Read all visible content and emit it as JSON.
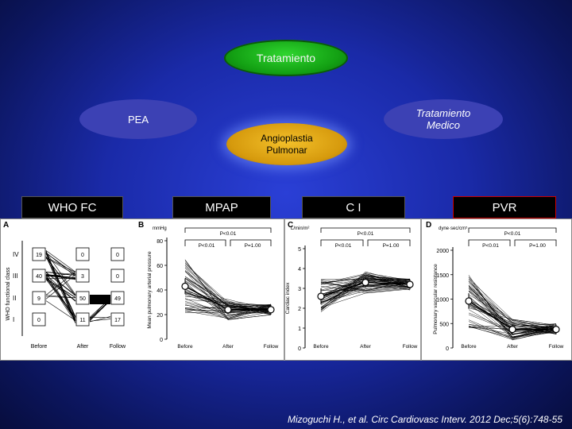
{
  "diagram": {
    "top_node": "Tratamiento",
    "left_node": "PEA",
    "right_node": "Tratamiento\nMedico",
    "center_node": "Angioplastia\nPulmonar"
  },
  "headers": {
    "who": "WHO FC",
    "mpap": "MPAP",
    "ci": "C I",
    "pvr": "PVR"
  },
  "citation": "Mizoguchi H., et al. Circ Cardiovasc Interv. 2012 Dec;5(6):748-55",
  "panels": {
    "A": {
      "letter": "A",
      "ylabel": "WHO functional class",
      "classes": [
        "IV",
        "III",
        "II",
        "I"
      ],
      "timepoints": [
        "Before",
        "After",
        "Follow"
      ],
      "counts": {
        "Before": [
          19,
          40,
          9,
          0
        ],
        "After": [
          0,
          3,
          50,
          11
        ],
        "Follow": [
          0,
          0,
          49,
          17
        ]
      }
    },
    "B": {
      "letter": "B",
      "unit": "mmHg",
      "ylabel": "Mean pulmonary arterial pressure",
      "yticks": [
        "80",
        "60",
        "40",
        "20",
        "0"
      ],
      "ylim": [
        0,
        80
      ],
      "timepoints": [
        "Before",
        "After",
        "Follow"
      ],
      "p_overall": "P<0.01",
      "p_left": "P<0.01",
      "p_right": "P=1.00",
      "means": [
        43,
        24,
        24
      ]
    },
    "C": {
      "letter": "C",
      "unit": "L/min/m²",
      "ylabel": "Cardiac index",
      "yticks": [
        "5",
        "4",
        "3",
        "2",
        "1",
        "0"
      ],
      "ylim": [
        0,
        5
      ],
      "timepoints": [
        "Before",
        "After",
        "Follow"
      ],
      "p_overall": "P<0.01",
      "p_left": "P<0.01",
      "p_right": "P=1.00",
      "means": [
        2.6,
        3.3,
        3.2
      ]
    },
    "D": {
      "letter": "D",
      "unit": "dyne·sec/cm⁵",
      "ylabel": "Pulmonary vascular resistance",
      "yticks": [
        "2000",
        "1500",
        "1000",
        "500",
        "0"
      ],
      "ylim": [
        0,
        2000
      ],
      "timepoints": [
        "Before",
        "After",
        "Follow"
      ],
      "p_overall": "P<0.01",
      "p_left": "P<0.01",
      "p_right": "P=1.00",
      "means": [
        960,
        380,
        380
      ]
    }
  }
}
